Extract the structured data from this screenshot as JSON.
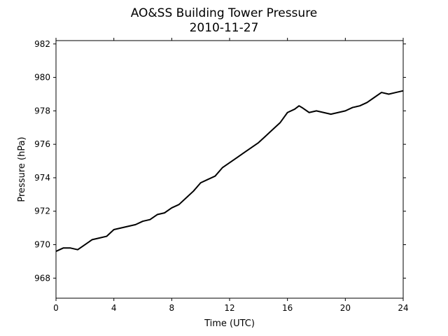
{
  "chart_data": {
    "type": "line",
    "title": "AO&SS Building Tower Pressure",
    "subtitle": "2010-11-27",
    "xlabel": "Time (UTC)",
    "ylabel": "Pressure (hPa)",
    "xlim": [
      0,
      24
    ],
    "ylim": [
      966.8,
      982.2
    ],
    "xticks": [
      0,
      4,
      8,
      12,
      16,
      20,
      24
    ],
    "yticks": [
      968,
      970,
      972,
      974,
      976,
      978,
      980,
      982
    ],
    "line_color": "#000000",
    "grid": false,
    "series": [
      {
        "x": [
          0,
          0.5,
          1,
          1.5,
          2,
          2.5,
          3,
          3.5,
          4,
          4.5,
          5,
          5.5,
          6,
          6.5,
          7,
          7.5,
          8,
          8.5,
          9,
          9.5,
          10,
          10.5,
          11,
          11.5,
          12,
          12.5,
          13,
          13.5,
          14,
          14.5,
          15,
          15.5,
          16,
          16.5,
          16.8,
          17,
          17.5,
          18,
          18.5,
          19,
          19.5,
          20,
          20.5,
          21,
          21.5,
          22,
          22.5,
          23,
          23.5,
          24
        ],
        "y": [
          969.6,
          969.8,
          969.8,
          969.7,
          970.0,
          970.3,
          970.4,
          970.5,
          970.9,
          971.0,
          971.1,
          971.2,
          971.4,
          971.5,
          971.8,
          971.9,
          972.2,
          972.4,
          972.8,
          973.2,
          973.7,
          973.9,
          974.1,
          974.6,
          974.9,
          975.2,
          975.5,
          975.8,
          976.1,
          976.5,
          976.9,
          977.3,
          977.9,
          978.1,
          978.3,
          978.2,
          977.9,
          978.0,
          977.9,
          977.8,
          977.9,
          978.0,
          978.2,
          978.3,
          978.5,
          978.8,
          979.1,
          979.0,
          979.1,
          979.2
        ]
      }
    ]
  }
}
